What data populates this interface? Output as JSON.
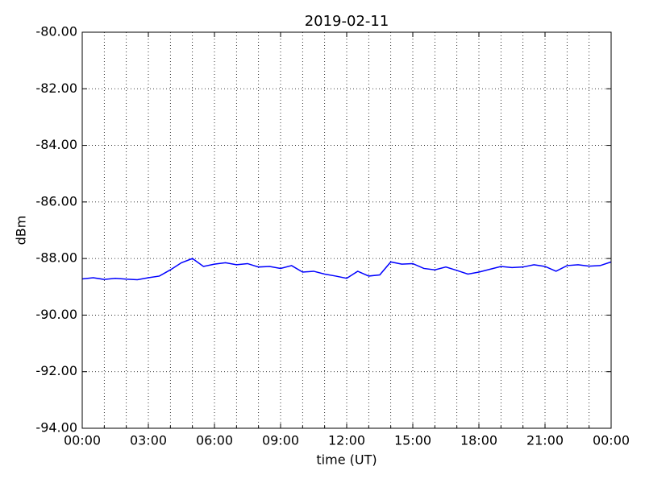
{
  "chart_data": {
    "type": "line",
    "title": "2019-02-11",
    "xlabel": "time (UT)",
    "ylabel": "dBm",
    "x": [
      0,
      0.5,
      1,
      1.5,
      2,
      2.5,
      3,
      3.5,
      4,
      4.5,
      5,
      5.5,
      6,
      6.5,
      7,
      7.5,
      8,
      8.5,
      9,
      9.5,
      10,
      10.5,
      11,
      11.5,
      12,
      12.5,
      13,
      13.5,
      14,
      14.5,
      15,
      15.5,
      16,
      16.5,
      17,
      17.5,
      18,
      18.5,
      19,
      19.5,
      20,
      20.5,
      21,
      21.5,
      22,
      22.5,
      23,
      23.5,
      24
    ],
    "series": [
      {
        "color": "#0000ff",
        "values": [
          -88.72,
          -88.68,
          -88.74,
          -88.7,
          -88.73,
          -88.75,
          -88.68,
          -88.62,
          -88.4,
          -88.15,
          -88.0,
          -88.28,
          -88.2,
          -88.15,
          -88.22,
          -88.18,
          -88.3,
          -88.28,
          -88.35,
          -88.25,
          -88.48,
          -88.45,
          -88.55,
          -88.62,
          -88.7,
          -88.45,
          -88.62,
          -88.58,
          -88.12,
          -88.2,
          -88.18,
          -88.35,
          -88.4,
          -88.3,
          -88.42,
          -88.55,
          -88.48,
          -88.38,
          -88.28,
          -88.32,
          -88.3,
          -88.22,
          -88.28,
          -88.45,
          -88.25,
          -88.22,
          -88.27,
          -88.25,
          -88.12
        ]
      }
    ],
    "xlim": [
      0,
      24
    ],
    "xticks": [
      {
        "value": 0,
        "label": "00:00"
      },
      {
        "value": 3,
        "label": "03:00"
      },
      {
        "value": 6,
        "label": "06:00"
      },
      {
        "value": 9,
        "label": "09:00"
      },
      {
        "value": 12,
        "label": "12:00"
      },
      {
        "value": 15,
        "label": "15:00"
      },
      {
        "value": 18,
        "label": "18:00"
      },
      {
        "value": 21,
        "label": "21:00"
      },
      {
        "value": 24,
        "label": "00:00"
      }
    ],
    "xminorticks": [
      1,
      2,
      4,
      5,
      7,
      8,
      10,
      11,
      13,
      14,
      16,
      17,
      19,
      20,
      22,
      23
    ],
    "ylim": [
      -94,
      -80
    ],
    "yticks": [
      {
        "value": -94,
        "label": "-94.00"
      },
      {
        "value": -92,
        "label": "-92.00"
      },
      {
        "value": -90,
        "label": "-90.00"
      },
      {
        "value": -88,
        "label": "-88.00"
      },
      {
        "value": -86,
        "label": "-86.00"
      },
      {
        "value": -84,
        "label": "-84.00"
      },
      {
        "value": -82,
        "label": "-82.00"
      },
      {
        "value": -80,
        "label": "-80.00"
      }
    ],
    "grid": true
  }
}
